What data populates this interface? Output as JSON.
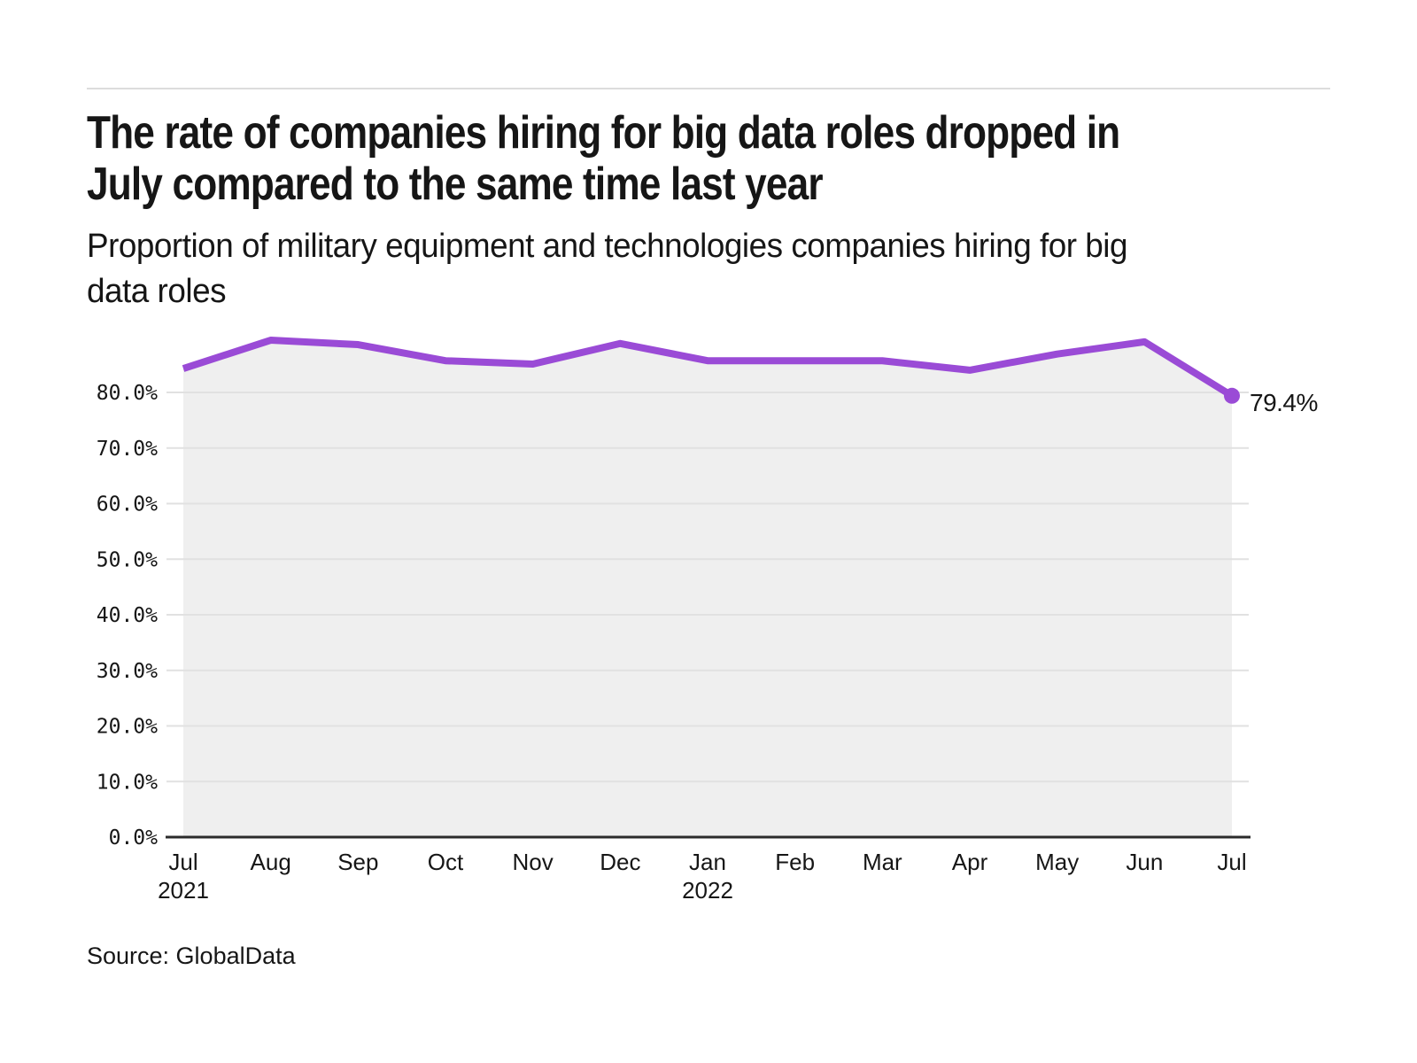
{
  "header": {
    "title_lines": [
      "The rate of companies hiring for big data roles dropped in",
      "July compared to the same time last year"
    ],
    "subtitle_lines": [
      "Proportion of military equipment and technologies companies hiring for big",
      "data roles"
    ]
  },
  "footer": {
    "source": "Source: GlobalData"
  },
  "colors": {
    "line": "#9A4BD6",
    "area_fill": "#efefef",
    "gridline": "#e1e1e1",
    "axis_line": "#2b2b2b",
    "text": "#161616",
    "divider": "#dcdcdc",
    "background": "#ffffff"
  },
  "chart_data": {
    "type": "line",
    "title": "Proportion of military equipment and technologies companies hiring for big data roles",
    "categories": [
      "Jul 2021",
      "Aug 2021",
      "Sep 2021",
      "Oct 2021",
      "Nov 2021",
      "Dec 2021",
      "Jan 2022",
      "Feb 2022",
      "Mar 2022",
      "Apr 2022",
      "May 2022",
      "Jun 2022",
      "Jul 2022"
    ],
    "x_tick_labels": [
      "Jul",
      "Aug",
      "Sep",
      "Oct",
      "Nov",
      "Dec",
      "Jan",
      "Feb",
      "Mar",
      "Apr",
      "May",
      "Jun",
      "Jul"
    ],
    "x_year_labels": [
      {
        "index": 0,
        "label": "2021"
      },
      {
        "index": 6,
        "label": "2022"
      }
    ],
    "values": [
      84.3,
      89.4,
      88.6,
      85.7,
      85.1,
      88.8,
      85.7,
      85.7,
      85.7,
      84.0,
      86.9,
      89.1,
      79.4
    ],
    "y_ticks": [
      "80.0%",
      "70.0%",
      "60.0%",
      "50.0%",
      "40.0%",
      "30.0%",
      "20.0%",
      "10.0%",
      "0.0%"
    ],
    "y_tick_values": [
      80,
      70,
      60,
      50,
      40,
      30,
      20,
      10,
      0
    ],
    "ylim": [
      0,
      90
    ],
    "xlabel": "",
    "ylabel": "",
    "grid": "horizontal",
    "legend": "none",
    "marker": "dot-on-last-point",
    "end_label": "79.4%",
    "area_filled": true
  }
}
